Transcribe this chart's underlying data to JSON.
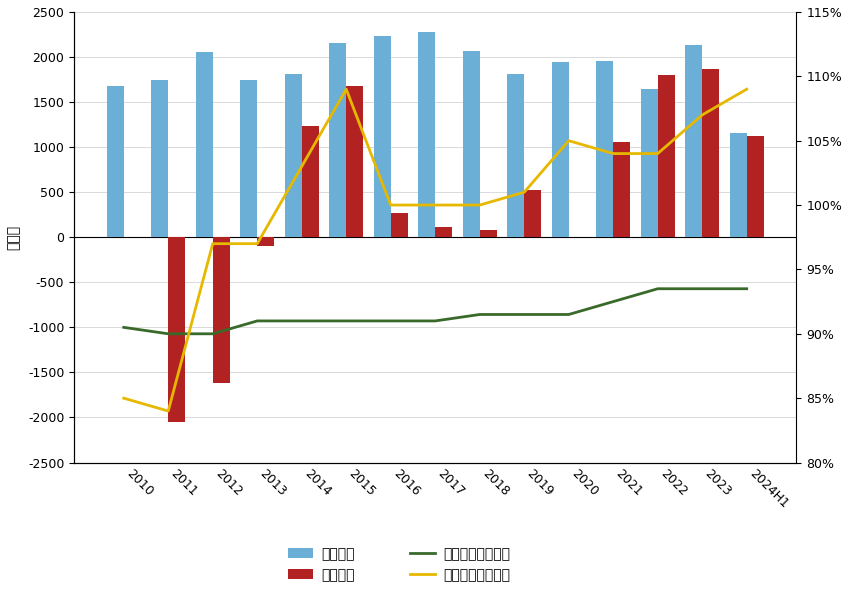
{
  "years": [
    "2010",
    "2011",
    "2012",
    "2013",
    "2014",
    "2015",
    "2016",
    "2017",
    "2018",
    "2019",
    "2020",
    "2021",
    "2022",
    "2023",
    "2024H1"
  ],
  "export_underreport": [
    1680,
    1750,
    2060,
    1750,
    1810,
    2160,
    2230,
    2280,
    2070,
    1810,
    1950,
    1960,
    1650,
    2130,
    1160
  ],
  "import_overpay": [
    0,
    -2050,
    -1620,
    -100,
    1230,
    1680,
    270,
    110,
    80,
    520,
    0,
    1060,
    1800,
    1870,
    1120
  ],
  "export_income_rate": [
    90.5,
    90.0,
    90.0,
    91.0,
    91.0,
    91.0,
    91.0,
    91.0,
    91.5,
    91.5,
    91.5,
    92.5,
    93.5,
    93.5,
    93.5
  ],
  "import_payment_rate": [
    85,
    84,
    97,
    97,
    103,
    109,
    100,
    100,
    100,
    101,
    105,
    104,
    104,
    107,
    109
  ],
  "bar_color_blue": "#6baed6",
  "bar_color_red": "#b22222",
  "line_color_green": "#3a6a2a",
  "line_color_yellow": "#e6b800",
  "ylim_left": [
    -2500,
    2500
  ],
  "ylim_right": [
    80,
    115
  ],
  "ylabel_left": "亿美元",
  "legend_labels": [
    "出口少收",
    "进口多付",
    "出口收入率（右）",
    "进口支付率（右）"
  ],
  "yticks_left": [
    -2500,
    -2000,
    -1500,
    -1000,
    -500,
    0,
    500,
    1000,
    1500,
    2000,
    2500
  ],
  "yticks_right": [
    80,
    85,
    90,
    95,
    100,
    105,
    110,
    115
  ]
}
